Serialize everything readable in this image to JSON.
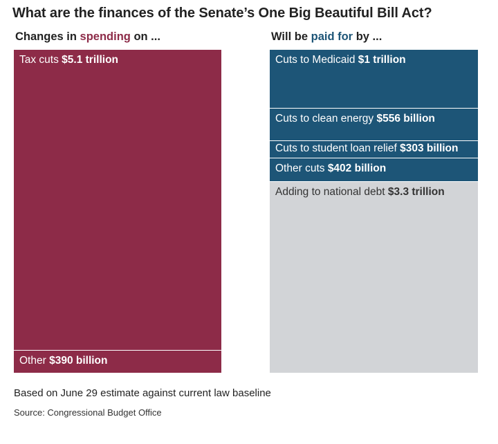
{
  "title": "What are the finances of the Senate’s One Big Beautiful Bill Act?",
  "left_header": {
    "pre": "Changes in ",
    "highlight": "spending",
    "post": " on ..."
  },
  "right_header": {
    "pre": "Will be ",
    "highlight": "paid for",
    "post": " by ..."
  },
  "colors": {
    "spending": "#8d2b48",
    "paid_for": "#1d5577",
    "debt": "#d2d4d7"
  },
  "chart_data": {
    "type": "bar",
    "title": "What are the finances of the Senate’s One Big Beautiful Bill Act?",
    "unit": "billion dollars",
    "stacks": [
      {
        "name": "Changes in spending on ...",
        "segments": [
          {
            "label": "Tax cuts",
            "value_label": "$5.1 trillion",
            "value": 5100,
            "color": "#8d2b48"
          },
          {
            "label": "Other",
            "value_label": "$390 billion",
            "value": 390,
            "color": "#8d2b48"
          }
        ]
      },
      {
        "name": "Will be paid for by ...",
        "segments": [
          {
            "label": "Cuts to Medicaid",
            "value_label": "$1 trillion",
            "value": 1000,
            "color": "#1d5577"
          },
          {
            "label": "Cuts to clean energy",
            "value_label": "$556 billion",
            "value": 556,
            "color": "#1d5577"
          },
          {
            "label": "Cuts to student loan relief",
            "value_label": "$303 billion",
            "value": 303,
            "color": "#1d5577"
          },
          {
            "label": "Other cuts",
            "value_label": "$402 billion",
            "value": 402,
            "color": "#1d5577"
          },
          {
            "label": "Adding to national debt",
            "value_label": "$3.3 trillion",
            "value": 3300,
            "color": "#d2d4d7"
          }
        ]
      }
    ],
    "footnote": "Based on June 29 estimate against current law baseline",
    "source": "Source: Congressional Budget Office"
  }
}
